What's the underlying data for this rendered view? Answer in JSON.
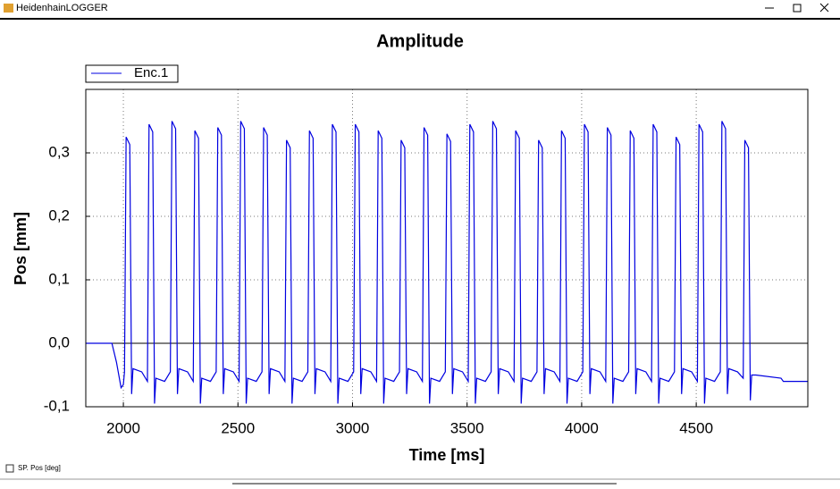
{
  "window": {
    "title": "HeidenhainLOGGER",
    "checkbox_label": "SP. Pos [deg]"
  },
  "chart_data": {
    "type": "line",
    "title": "Amplitude",
    "x_label": "Time [ms]",
    "y_label": "Pos [mm]",
    "legend": "top-left",
    "grid": true,
    "xlim": [
      1836,
      4987
    ],
    "ylim": [
      -0.1,
      0.4
    ],
    "xticks": [
      2000,
      2500,
      3000,
      3500,
      4000,
      4500
    ],
    "yticks": [
      {
        "value": -0.1,
        "label": "-0,1"
      },
      {
        "value": 0,
        "label": "0,0"
      },
      {
        "value": 0.1,
        "label": "0,1"
      },
      {
        "value": 0.2,
        "label": "0,2"
      },
      {
        "value": 0.3,
        "label": "0,3"
      }
    ],
    "x": [
      1836,
      1950,
      1970,
      1990,
      2000,
      2005,
      2012,
      2028,
      2036,
      2042,
      2080,
      2105,
      2112,
      2128,
      2136,
      2142,
      2180,
      2205,
      2212,
      2228,
      2236,
      2242,
      2280,
      2305,
      2312,
      2328,
      2336,
      2342,
      2380,
      2405,
      2412,
      2428,
      2436,
      2442,
      2480,
      2505,
      2512,
      2528,
      2536,
      2542,
      2580,
      2605,
      2612,
      2628,
      2636,
      2642,
      2680,
      2705,
      2712,
      2728,
      2736,
      2742,
      2780,
      2805,
      2812,
      2828,
      2836,
      2842,
      2880,
      2905,
      2912,
      2928,
      2936,
      2942,
      2980,
      3005,
      3012,
      3028,
      3036,
      3042,
      3080,
      3105,
      3112,
      3128,
      3136,
      3142,
      3180,
      3205,
      3212,
      3228,
      3236,
      3242,
      3280,
      3305,
      3312,
      3328,
      3336,
      3342,
      3380,
      3405,
      3412,
      3428,
      3436,
      3442,
      3480,
      3505,
      3512,
      3528,
      3536,
      3542,
      3580,
      3605,
      3612,
      3628,
      3636,
      3642,
      3680,
      3705,
      3712,
      3728,
      3736,
      3742,
      3780,
      3805,
      3812,
      3828,
      3836,
      3842,
      3880,
      3905,
      3912,
      3928,
      3936,
      3942,
      3980,
      4005,
      4012,
      4028,
      4036,
      4042,
      4080,
      4105,
      4112,
      4128,
      4136,
      4142,
      4180,
      4205,
      4212,
      4228,
      4236,
      4242,
      4280,
      4305,
      4312,
      4328,
      4336,
      4342,
      4380,
      4405,
      4412,
      4428,
      4436,
      4442,
      4480,
      4505,
      4512,
      4528,
      4536,
      4542,
      4580,
      4605,
      4612,
      4628,
      4636,
      4642,
      4680,
      4705,
      4712,
      4728,
      4736,
      4742,
      4760,
      4870,
      4880,
      4987
    ],
    "series": [
      {
        "name": "Enc.1",
        "color": "#0000e0",
        "values": [
          0,
          0,
          -0.03,
          -0.07,
          -0.065,
          -0.045,
          0.325,
          0.313,
          -0.08,
          -0.04,
          -0.045,
          -0.06,
          0.345,
          0.333,
          -0.095,
          -0.055,
          -0.06,
          -0.045,
          0.35,
          0.338,
          -0.08,
          -0.04,
          -0.045,
          -0.06,
          0.335,
          0.323,
          -0.095,
          -0.055,
          -0.06,
          -0.045,
          0.34,
          0.328,
          -0.08,
          -0.04,
          -0.045,
          -0.06,
          0.35,
          0.338,
          -0.095,
          -0.055,
          -0.06,
          -0.045,
          0.34,
          0.328,
          -0.08,
          -0.04,
          -0.045,
          -0.06,
          0.32,
          0.308,
          -0.095,
          -0.055,
          -0.06,
          -0.045,
          0.335,
          0.323,
          -0.08,
          -0.04,
          -0.045,
          -0.06,
          0.345,
          0.333,
          -0.095,
          -0.055,
          -0.06,
          -0.045,
          0.345,
          0.333,
          -0.08,
          -0.04,
          -0.045,
          -0.06,
          0.335,
          0.323,
          -0.095,
          -0.055,
          -0.06,
          -0.045,
          0.32,
          0.308,
          -0.08,
          -0.04,
          -0.045,
          -0.06,
          0.34,
          0.328,
          -0.095,
          -0.055,
          -0.06,
          -0.045,
          0.33,
          0.318,
          -0.08,
          -0.04,
          -0.045,
          -0.06,
          0.345,
          0.333,
          -0.095,
          -0.055,
          -0.06,
          -0.045,
          0.35,
          0.338,
          -0.08,
          -0.04,
          -0.045,
          -0.06,
          0.335,
          0.323,
          -0.095,
          -0.055,
          -0.06,
          -0.045,
          0.32,
          0.308,
          -0.08,
          -0.04,
          -0.045,
          -0.06,
          0.335,
          0.323,
          -0.095,
          -0.055,
          -0.06,
          -0.045,
          0.345,
          0.333,
          -0.08,
          -0.04,
          -0.045,
          -0.06,
          0.34,
          0.328,
          -0.095,
          -0.055,
          -0.06,
          -0.045,
          0.335,
          0.323,
          -0.08,
          -0.04,
          -0.045,
          -0.06,
          0.345,
          0.333,
          -0.095,
          -0.055,
          -0.06,
          -0.045,
          0.325,
          0.313,
          -0.08,
          -0.04,
          -0.045,
          -0.06,
          0.345,
          0.333,
          -0.095,
          -0.055,
          -0.06,
          -0.045,
          0.35,
          0.338,
          -0.08,
          -0.04,
          -0.045,
          -0.055,
          0.32,
          0.308,
          -0.09,
          -0.05,
          -0.05,
          -0.055,
          -0.06,
          -0.06
        ]
      }
    ]
  }
}
